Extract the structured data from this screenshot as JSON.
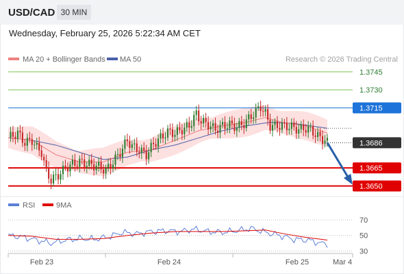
{
  "header": {
    "symbol": "USD/CAD",
    "timeframe": "30 MIN",
    "datetime": "Wednesday, February 25, 2026 5:22:34 AM CET"
  },
  "colors": {
    "up": "#2e7d32",
    "down": "#c62828",
    "resistance": "#7cc250",
    "pivot": "#1d73d9",
    "support": "#e00000",
    "price_badge": "#333333",
    "ma20": "#f08080",
    "ma50": "#4a5fa8",
    "bands_fill": "#fde0e0",
    "rsi": "#5b7fd6",
    "rsi_ma": "#e00000",
    "arrow": "#2860a8"
  },
  "chart_data": [
    {
      "type": "candlestick",
      "legend": [
        "MA 20 + Bollinger Bands",
        "MA 50"
      ],
      "credit": "Research © 2026 Trading Central",
      "ylim": [
        1.3644,
        1.3762
      ],
      "x_ticks": [
        "Feb 23",
        "Feb 24",
        "Feb 25",
        "Mar 4"
      ],
      "levels": [
        {
          "value": 1.3745,
          "label": "1.3745",
          "kind": "resistance"
        },
        {
          "value": 1.373,
          "label": "1.3730",
          "kind": "resistance"
        },
        {
          "value": 1.3715,
          "label": "1.3715",
          "kind": "pivot"
        },
        {
          "value": 1.3686,
          "label": "1.3686",
          "kind": "price"
        },
        {
          "value": 1.3665,
          "label": "1.3665",
          "kind": "support"
        },
        {
          "value": 1.365,
          "label": "1.3650",
          "kind": "support"
        }
      ],
      "close_path": [
        [
          0,
          1.369
        ],
        [
          4,
          1.3694
        ],
        [
          7,
          1.3686
        ],
        [
          10,
          1.3688
        ],
        [
          12,
          1.3682
        ],
        [
          14,
          1.3678
        ],
        [
          16,
          1.3662
        ],
        [
          18,
          1.3655
        ],
        [
          21,
          1.3659
        ],
        [
          24,
          1.3665
        ],
        [
          27,
          1.3668
        ],
        [
          30,
          1.367
        ],
        [
          34,
          1.3668
        ],
        [
          38,
          1.3666
        ],
        [
          41,
          1.3663
        ],
        [
          44,
          1.367
        ],
        [
          47,
          1.3678
        ],
        [
          50,
          1.3688
        ],
        [
          52,
          1.3683
        ],
        [
          55,
          1.368
        ],
        [
          58,
          1.3676
        ],
        [
          61,
          1.3685
        ],
        [
          64,
          1.369
        ],
        [
          67,
          1.3695
        ],
        [
          70,
          1.3694
        ],
        [
          73,
          1.3697
        ],
        [
          76,
          1.37
        ],
        [
          79,
          1.371
        ],
        [
          81,
          1.3704
        ],
        [
          84,
          1.3701
        ],
        [
          87,
          1.3697
        ],
        [
          90,
          1.37
        ],
        [
          93,
          1.3701
        ],
        [
          96,
          1.3699
        ],
        [
          99,
          1.3702
        ],
        [
          102,
          1.3708
        ],
        [
          104,
          1.3712
        ],
        [
          106,
          1.3716
        ],
        [
          108,
          1.371
        ],
        [
          110,
          1.37
        ],
        [
          113,
          1.37
        ],
        [
          116,
          1.37
        ],
        [
          119,
          1.3699
        ],
        [
          122,
          1.3697
        ],
        [
          125,
          1.3698
        ],
        [
          127,
          1.3697
        ],
        [
          129,
          1.3693
        ],
        [
          131,
          1.369
        ],
        [
          133,
          1.3688
        ],
        [
          134,
          1.3686
        ]
      ],
      "ma20_path": [
        [
          0,
          1.369
        ],
        [
          10,
          1.3688
        ],
        [
          20,
          1.3676
        ],
        [
          30,
          1.367
        ],
        [
          40,
          1.367
        ],
        [
          50,
          1.3678
        ],
        [
          60,
          1.368
        ],
        [
          70,
          1.3688
        ],
        [
          80,
          1.3696
        ],
        [
          90,
          1.37
        ],
        [
          100,
          1.3703
        ],
        [
          108,
          1.3707
        ],
        [
          115,
          1.3703
        ],
        [
          125,
          1.37
        ],
        [
          134,
          1.3694
        ]
      ],
      "ma50_path": [
        [
          0,
          1.369
        ],
        [
          10,
          1.3688
        ],
        [
          20,
          1.3684
        ],
        [
          30,
          1.3678
        ],
        [
          40,
          1.3672
        ],
        [
          50,
          1.3674
        ],
        [
          60,
          1.368
        ],
        [
          70,
          1.3684
        ],
        [
          80,
          1.369
        ],
        [
          90,
          1.3696
        ],
        [
          100,
          1.37
        ],
        [
          110,
          1.3703
        ],
        [
          120,
          1.3702
        ],
        [
          134,
          1.3698
        ]
      ],
      "band_width": 0.001,
      "projection": {
        "from": [
          134,
          1.3686
        ],
        "to": [
          144,
          1.3653
        ]
      }
    },
    {
      "type": "line",
      "name": "rsi-panel",
      "legend": [
        "RSI",
        "9MA"
      ],
      "ylim": [
        25,
        78
      ],
      "y_ticks": [
        70,
        50,
        30
      ],
      "rsi_path": [
        [
          0,
          50
        ],
        [
          6,
          48
        ],
        [
          12,
          44
        ],
        [
          18,
          40
        ],
        [
          24,
          44
        ],
        [
          30,
          46
        ],
        [
          36,
          45
        ],
        [
          42,
          48
        ],
        [
          48,
          54
        ],
        [
          54,
          52
        ],
        [
          60,
          55
        ],
        [
          66,
          56
        ],
        [
          72,
          55
        ],
        [
          78,
          58
        ],
        [
          84,
          55
        ],
        [
          90,
          54
        ],
        [
          96,
          56
        ],
        [
          102,
          59
        ],
        [
          108,
          54
        ],
        [
          114,
          50
        ],
        [
          120,
          45
        ],
        [
          126,
          44
        ],
        [
          131,
          40
        ],
        [
          134,
          39
        ]
      ],
      "ma_path": [
        [
          0,
          50
        ],
        [
          10,
          49
        ],
        [
          20,
          45
        ],
        [
          30,
          45
        ],
        [
          40,
          46
        ],
        [
          50,
          50
        ],
        [
          60,
          53
        ],
        [
          70,
          55
        ],
        [
          80,
          55
        ],
        [
          90,
          55
        ],
        [
          100,
          56
        ],
        [
          108,
          57
        ],
        [
          116,
          52
        ],
        [
          124,
          48
        ],
        [
          134,
          44
        ]
      ]
    }
  ]
}
